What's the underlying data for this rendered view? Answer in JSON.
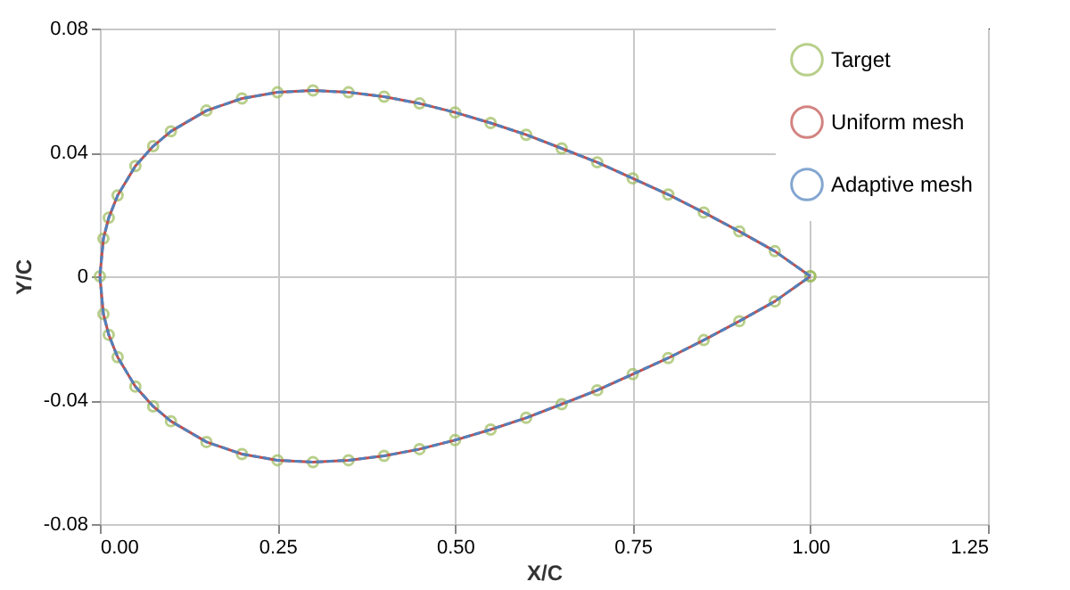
{
  "chart_data": {
    "type": "line",
    "xlabel": "X/C",
    "ylabel": "Y/C",
    "x": [
      1,
      0.95,
      0.9,
      0.85,
      0.8,
      0.75,
      0.7,
      0.65,
      0.6,
      0.55,
      0.5,
      0.45,
      0.4,
      0.35,
      0.3,
      0.25,
      0.2,
      0.15,
      0.1,
      0.075,
      0.05,
      0.025,
      0.0125,
      0.005,
      0,
      0.005,
      0.0125,
      0.025,
      0.05,
      0.075,
      0.1,
      0.15,
      0.2,
      0.25,
      0.3,
      0.35,
      0.4,
      0.45,
      0.5,
      0.55,
      0.6,
      0.65,
      0.7,
      0.75,
      0.8,
      0.85,
      0.9,
      0.95,
      1
    ],
    "series": [
      {
        "name": "Target",
        "type": "scatter",
        "marker": "circle",
        "color": "#9bbb59",
        "values": [
          0,
          0.0081,
          0.0145,
          0.0206,
          0.0264,
          0.0316,
          0.0368,
          0.0413,
          0.0457,
          0.0495,
          0.0529,
          0.0558,
          0.058,
          0.0594,
          0.06,
          0.0594,
          0.0574,
          0.0535,
          0.0468,
          0.042,
          0.0356,
          0.0261,
          0.0189,
          0.0122,
          0,
          -0.0122,
          -0.0189,
          -0.0261,
          -0.0356,
          -0.042,
          -0.0468,
          -0.0535,
          -0.0574,
          -0.0594,
          -0.06,
          -0.0594,
          -0.058,
          -0.0558,
          -0.0529,
          -0.0495,
          -0.0457,
          -0.0413,
          -0.0368,
          -0.0316,
          -0.0264,
          -0.0206,
          -0.0145,
          -0.0081,
          0
        ]
      },
      {
        "name": "Uniform mesh",
        "type": "line",
        "line_style": "solid",
        "color": "#c0504d",
        "values": [
          0,
          0.0081,
          0.0145,
          0.0206,
          0.0264,
          0.0316,
          0.0368,
          0.0413,
          0.0457,
          0.0495,
          0.0529,
          0.0558,
          0.058,
          0.0594,
          0.06,
          0.0594,
          0.0574,
          0.0535,
          0.0468,
          0.042,
          0.0356,
          0.0261,
          0.0189,
          0.0122,
          0,
          -0.0122,
          -0.0189,
          -0.0261,
          -0.0356,
          -0.042,
          -0.0468,
          -0.0535,
          -0.0574,
          -0.0594,
          -0.06,
          -0.0594,
          -0.058,
          -0.0558,
          -0.0529,
          -0.0495,
          -0.0457,
          -0.0413,
          -0.0368,
          -0.0316,
          -0.0264,
          -0.0206,
          -0.0145,
          -0.0081,
          0
        ]
      },
      {
        "name": "Adaptive mesh",
        "type": "line",
        "line_style": "dashed",
        "color": "#4f81bd",
        "values": [
          0,
          0.0081,
          0.0145,
          0.0206,
          0.0264,
          0.0316,
          0.0368,
          0.0413,
          0.0457,
          0.0495,
          0.0529,
          0.0558,
          0.058,
          0.0594,
          0.06,
          0.0594,
          0.0574,
          0.0535,
          0.0468,
          0.042,
          0.0356,
          0.0261,
          0.0189,
          0.0122,
          0,
          -0.0122,
          -0.0189,
          -0.0261,
          -0.0356,
          -0.042,
          -0.0468,
          -0.0535,
          -0.0574,
          -0.0594,
          -0.06,
          -0.0594,
          -0.058,
          -0.0558,
          -0.0529,
          -0.0495,
          -0.0457,
          -0.0413,
          -0.0368,
          -0.0316,
          -0.0264,
          -0.0206,
          -0.0145,
          -0.0081,
          0
        ]
      }
    ],
    "xlim": [
      0,
      1.25
    ],
    "xticks": [
      {
        "value": 0,
        "label": "0.00"
      },
      {
        "value": 0.25,
        "label": "0.25"
      },
      {
        "value": 0.5,
        "label": "0.50"
      },
      {
        "value": 0.75,
        "label": "0.75"
      },
      {
        "value": 1,
        "label": "1.00"
      },
      {
        "value": 1.25,
        "label": "1.25"
      }
    ],
    "ylim": [
      -0.08,
      0.08
    ],
    "yticks": [
      -0.08,
      -0.04,
      0,
      0.04,
      0.08
    ],
    "grid": true,
    "legend": "top right"
  }
}
